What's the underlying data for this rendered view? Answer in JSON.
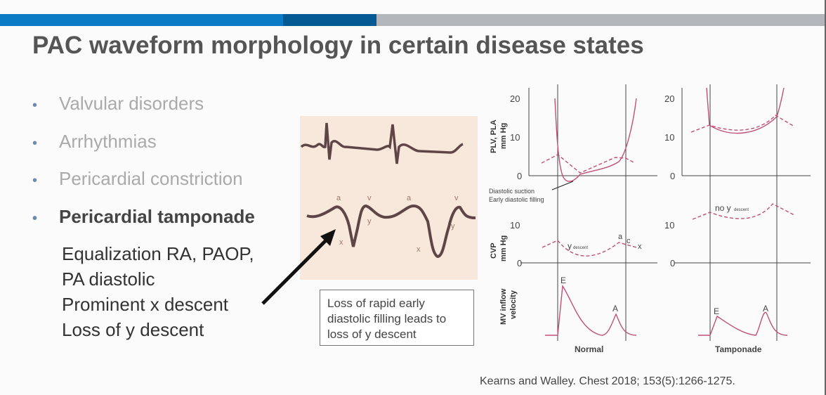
{
  "slide": {
    "title": "PAC waveform morphology in certain disease states",
    "bullets": [
      {
        "label": "Valvular disorders",
        "active": false
      },
      {
        "label": "Arrhythmias",
        "active": false
      },
      {
        "label": "Pericardial constriction",
        "active": false
      },
      {
        "label": "Pericardial tamponade",
        "active": true
      }
    ],
    "sub_points": [
      "Equalization RA, PAOP,",
      "PA diastolic",
      "Prominent x descent",
      "Loss of y descent"
    ],
    "callout": "Loss of rapid early diastolic filling leads to loss of y descent",
    "citation": "Kearns and Walley. Chest 2018; 153(5):1266-1275."
  },
  "waveform": {
    "labels": {
      "a": "a",
      "v": "v",
      "x": "x",
      "y": "y"
    }
  },
  "figure": {
    "ylabel_top": "Pₗᵥ, Pₗₐ mm Hg",
    "ylabel_top_line1": "PLV, PLA",
    "ylabel_top_line2": "mm Hg",
    "ylabel_mid_line1": "CVP",
    "ylabel_mid_line2": "mm Hg",
    "ylabel_bot_line1": "MV inflow",
    "ylabel_bot_line2": "velocity",
    "ticks": {
      "t20": "20",
      "t10": "10",
      "t0": "0"
    },
    "annotation_line1": "Diastolic suction",
    "annotation_line2": "Early diastolic filling",
    "y_descent": "y",
    "descent": "descent",
    "no_y": "no y",
    "a": "a",
    "c": "c",
    "x": "x",
    "E": "E",
    "A": "A",
    "normal_label": "Normal",
    "tamponade_label": "Tamponade"
  },
  "colors": {
    "accent_blue": "#0a7bc4",
    "dark_blue": "#045a93",
    "gray_bar": "#b3b6ba",
    "curve": "#c0507a"
  }
}
